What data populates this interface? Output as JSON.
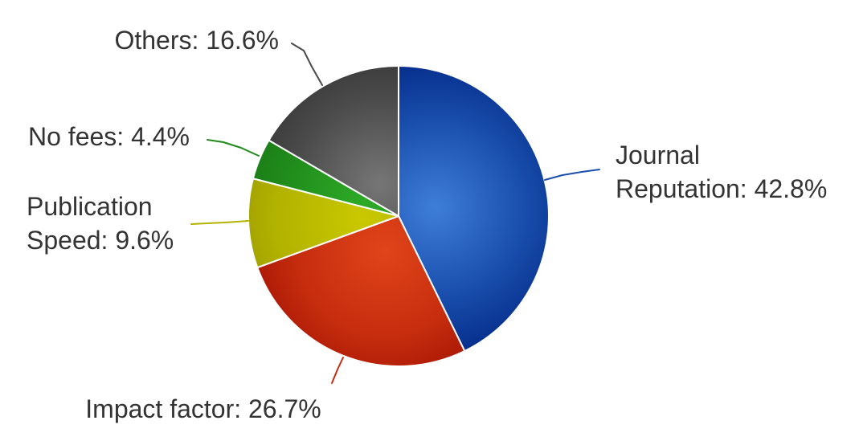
{
  "chart_data": {
    "type": "pie",
    "title": "",
    "start_angle_deg": 0,
    "direction": "clockwise",
    "slices": [
      {
        "name": "Journal Reputation",
        "value": 42.8,
        "label_lines": [
          "Journal",
          "Reputation: 42.8%"
        ],
        "color": "#1a4fad",
        "color_light": "#3e7ed8",
        "color_dark": "#022886"
      },
      {
        "name": "Impact factor",
        "value": 26.7,
        "label_lines": [
          "Impact factor: 26.7%"
        ],
        "color": "#c62d0e",
        "color_light": "#e0441a",
        "color_dark": "#9b0c00"
      },
      {
        "name": "Publication Speed",
        "value": 9.6,
        "label_lines": [
          "Publication",
          "Speed: 9.6%"
        ],
        "color": "#b2b200",
        "color_light": "#c9c800",
        "color_dark": "#8f8e00"
      },
      {
        "name": "No fees",
        "value": 4.4,
        "label_lines": [
          "No fees: 4.4%"
        ],
        "color": "#1f8a1b",
        "color_light": "#2eaa26",
        "color_dark": "#166e12"
      },
      {
        "name": "Others",
        "value": 16.6,
        "label_lines": [
          "Others: 16.6%"
        ],
        "color": "#4a4a4a",
        "color_light": "#767676",
        "color_dark": "#2e2e2e"
      }
    ]
  }
}
